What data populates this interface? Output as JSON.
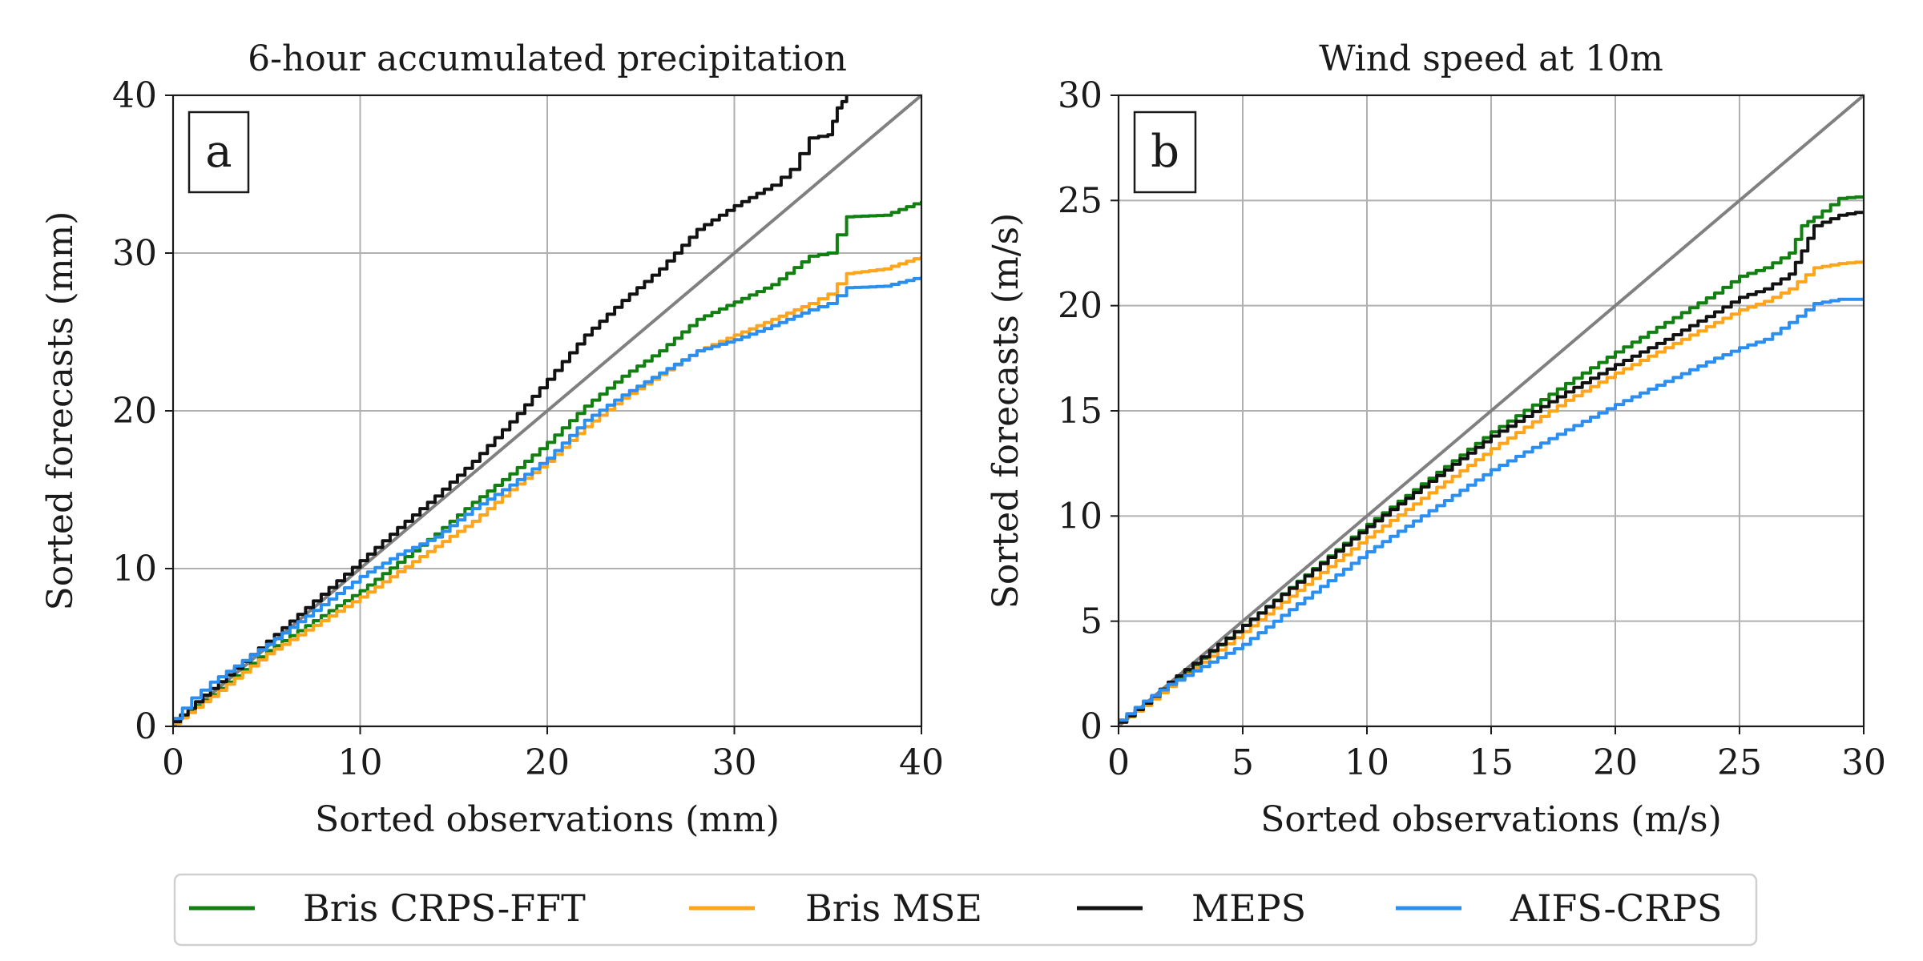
{
  "colors": {
    "Bris CRPS-FFT": "#118011",
    "Bris MSE": "#ffa51c",
    "MEPS": "#111111",
    "AIFS-CRPS": "#2a8ff0",
    "diagonal": "#808080"
  },
  "legend": {
    "placement": "bottom-center",
    "entries": [
      "Bris CRPS-FFT",
      "Bris MSE",
      "MEPS",
      "AIFS-CRPS"
    ]
  },
  "chart_data": [
    {
      "type": "line",
      "id": "a",
      "panel_label": "a",
      "title": "6-hour accumulated precipitation",
      "xlabel": "Sorted observations (mm)",
      "ylabel": "Sorted forecasts (mm)",
      "xlim": [
        0,
        40
      ],
      "ylim": [
        0,
        40
      ],
      "xticks": [
        0,
        10,
        20,
        30,
        40
      ],
      "yticks": [
        0,
        10,
        20,
        30,
        40
      ],
      "xtick_labels": [
        "0",
        "10",
        "20",
        "30",
        "40"
      ],
      "ytick_labels": [
        "0",
        "10",
        "20",
        "30",
        "40"
      ],
      "grid": true,
      "reference_line": {
        "name": "y = x",
        "x": [
          0,
          40
        ],
        "y": [
          0,
          40
        ]
      },
      "series": [
        {
          "name": "Bris CRPS-FFT",
          "x": [
            0,
            2,
            5,
            10,
            12,
            14,
            16,
            18,
            20,
            22,
            24,
            26,
            28,
            30,
            32,
            34,
            35,
            36,
            38,
            40
          ],
          "y": [
            0.2,
            2.0,
            4.8,
            8.6,
            10.4,
            12.2,
            14.2,
            16.0,
            18.0,
            20.3,
            22.2,
            23.8,
            25.8,
            26.9,
            28.0,
            29.8,
            30.0,
            32.3,
            32.4,
            33.3
          ]
        },
        {
          "name": "Bris MSE",
          "x": [
            0,
            2,
            5,
            10,
            12,
            14,
            16,
            18,
            20,
            22,
            24,
            26,
            28,
            30,
            32,
            34,
            35,
            36,
            38,
            40
          ],
          "y": [
            0.2,
            1.9,
            4.6,
            8.2,
            9.8,
            11.4,
            13.0,
            15.0,
            16.8,
            19.0,
            20.8,
            22.3,
            23.8,
            24.8,
            25.8,
            26.8,
            27.4,
            28.7,
            29.0,
            29.8
          ]
        },
        {
          "name": "MEPS",
          "x": [
            0,
            2,
            5,
            10,
            12,
            14,
            16,
            18,
            20,
            22,
            24,
            26,
            28,
            30,
            32,
            33,
            34,
            35,
            35.5,
            36
          ],
          "y": [
            0.3,
            2.4,
            5.4,
            10.5,
            12.6,
            14.6,
            16.8,
            19.3,
            22.0,
            24.8,
            27.0,
            29.0,
            31.5,
            33.0,
            34.3,
            35.3,
            37.3,
            37.5,
            39.2,
            40
          ]
        },
        {
          "name": "AIFS-CRPS",
          "x": [
            0,
            1,
            2,
            5,
            10,
            12,
            14,
            16,
            18,
            20,
            22,
            24,
            26,
            28,
            30,
            32,
            34,
            35,
            36,
            38,
            40
          ],
          "y": [
            0.5,
            1.8,
            2.8,
            5.2,
            9.5,
            10.9,
            12.0,
            13.8,
            15.3,
            17.0,
            19.4,
            21.0,
            22.4,
            23.8,
            24.5,
            25.4,
            26.4,
            26.8,
            27.8,
            27.9,
            28.5
          ]
        }
      ]
    },
    {
      "type": "line",
      "id": "b",
      "panel_label": "b",
      "title": "Wind speed at 10m",
      "xlabel": "Sorted observations (m/s)",
      "ylabel": "Sorted forecasts (m/s)",
      "xlim": [
        0,
        30
      ],
      "ylim": [
        0,
        30
      ],
      "xticks": [
        0,
        5,
        10,
        15,
        20,
        25,
        30
      ],
      "yticks": [
        0,
        5,
        10,
        15,
        20,
        25,
        30
      ],
      "xtick_labels": [
        "0",
        "5",
        "10",
        "15",
        "20",
        "25",
        "30"
      ],
      "ytick_labels": [
        "0",
        "5",
        "10",
        "15",
        "20",
        "25",
        "30"
      ],
      "grid": true,
      "reference_line": {
        "name": "y = x",
        "x": [
          0,
          30
        ],
        "y": [
          0,
          30
        ]
      },
      "series": [
        {
          "name": "Bris CRPS-FFT",
          "x": [
            0,
            1,
            2,
            5,
            10,
            15,
            18,
            20,
            22,
            24,
            25,
            26,
            27,
            27.5,
            28,
            29,
            30
          ],
          "y": [
            0.2,
            1.0,
            2.0,
            4.8,
            9.6,
            14.0,
            16.3,
            17.8,
            19.2,
            20.6,
            21.4,
            21.8,
            22.5,
            23.8,
            24.2,
            25.1,
            25.2
          ]
        },
        {
          "name": "Bris MSE",
          "x": [
            0,
            1,
            2,
            5,
            10,
            15,
            18,
            20,
            22,
            24,
            25,
            26,
            27,
            28,
            29,
            30
          ],
          "y": [
            0.2,
            1.0,
            1.9,
            4.5,
            9.0,
            13.2,
            15.5,
            16.8,
            18.0,
            19.2,
            19.8,
            20.2,
            20.8,
            21.8,
            22.0,
            22.1
          ]
        },
        {
          "name": "MEPS",
          "x": [
            0,
            1,
            2,
            5,
            10,
            15,
            18,
            20,
            22,
            24,
            25,
            26,
            27,
            27.5,
            28,
            29,
            30
          ],
          "y": [
            0.2,
            1.1,
            2.1,
            4.8,
            9.5,
            13.8,
            15.9,
            17.2,
            18.4,
            19.7,
            20.4,
            20.8,
            21.5,
            22.6,
            23.8,
            24.3,
            24.5
          ]
        },
        {
          "name": "AIFS-CRPS",
          "x": [
            0,
            1,
            2,
            5,
            10,
            15,
            18,
            20,
            22,
            24,
            25,
            26,
            27,
            28,
            29,
            30
          ],
          "y": [
            0.3,
            1.2,
            2.0,
            3.9,
            8.3,
            12.2,
            14.1,
            15.3,
            16.4,
            17.5,
            18.0,
            18.4,
            19.2,
            20.1,
            20.3,
            20.3
          ]
        }
      ]
    }
  ]
}
